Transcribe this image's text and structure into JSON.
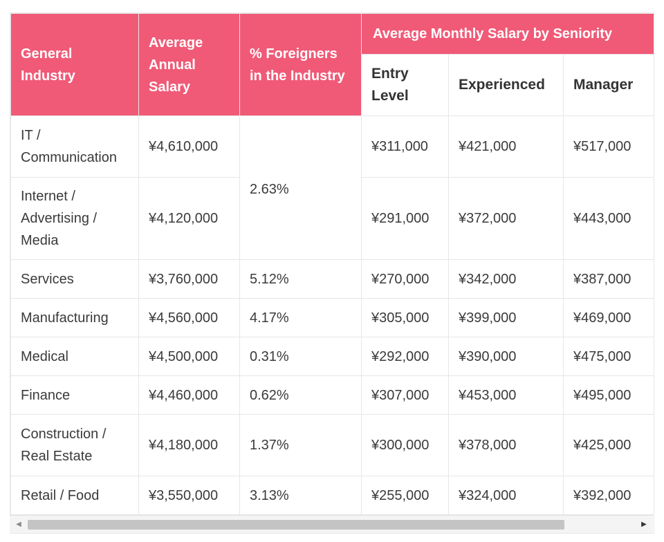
{
  "table": {
    "headers": {
      "industry": "General Industry",
      "annual": "Average Annual Salary",
      "foreigners": "% Foreigners in the Industry",
      "group": "Average Monthly Salary by Seniority",
      "entry": "Entry Level",
      "experienced": "Experienced",
      "manager": "Manager"
    },
    "rows": [
      {
        "industry": "IT / Communication",
        "annual": "¥4,610,000",
        "foreigners": "2.63%",
        "entry": "¥311,000",
        "experienced": "¥421,000",
        "manager": "¥517,000"
      },
      {
        "industry": "Internet / Advertising / Media",
        "annual": "¥4,120,000",
        "foreigners": "",
        "entry": "¥291,000",
        "experienced": "¥372,000",
        "manager": "¥443,000"
      },
      {
        "industry": "Services",
        "annual": "¥3,760,000",
        "foreigners": "5.12%",
        "entry": "¥270,000",
        "experienced": "¥342,000",
        "manager": "¥387,000"
      },
      {
        "industry": "Manufacturing",
        "annual": "¥4,560,000",
        "foreigners": "4.17%",
        "entry": "¥305,000",
        "experienced": "¥399,000",
        "manager": "¥469,000"
      },
      {
        "industry": "Medical",
        "annual": "¥4,500,000",
        "foreigners": "0.31%",
        "entry": "¥292,000",
        "experienced": "¥390,000",
        "manager": "¥475,000"
      },
      {
        "industry": "Finance",
        "annual": "¥4,460,000",
        "foreigners": "0.62%",
        "entry": "¥307,000",
        "experienced": "¥453,000",
        "manager": "¥495,000"
      },
      {
        "industry": "Construction / Real Estate",
        "annual": "¥4,180,000",
        "foreigners": "1.37%",
        "entry": "¥300,000",
        "experienced": "¥378,000",
        "manager": "¥425,000"
      },
      {
        "industry": "Retail / Food",
        "annual": "¥3,550,000",
        "foreigners": "3.13%",
        "entry": "¥255,000",
        "experienced": "¥324,000",
        "manager": "¥392,000"
      }
    ]
  },
  "scrollbar": {
    "left_arrow": "◀",
    "right_arrow": "▶"
  },
  "colors": {
    "header": "#f05a77",
    "border": "#e6e6e6"
  }
}
